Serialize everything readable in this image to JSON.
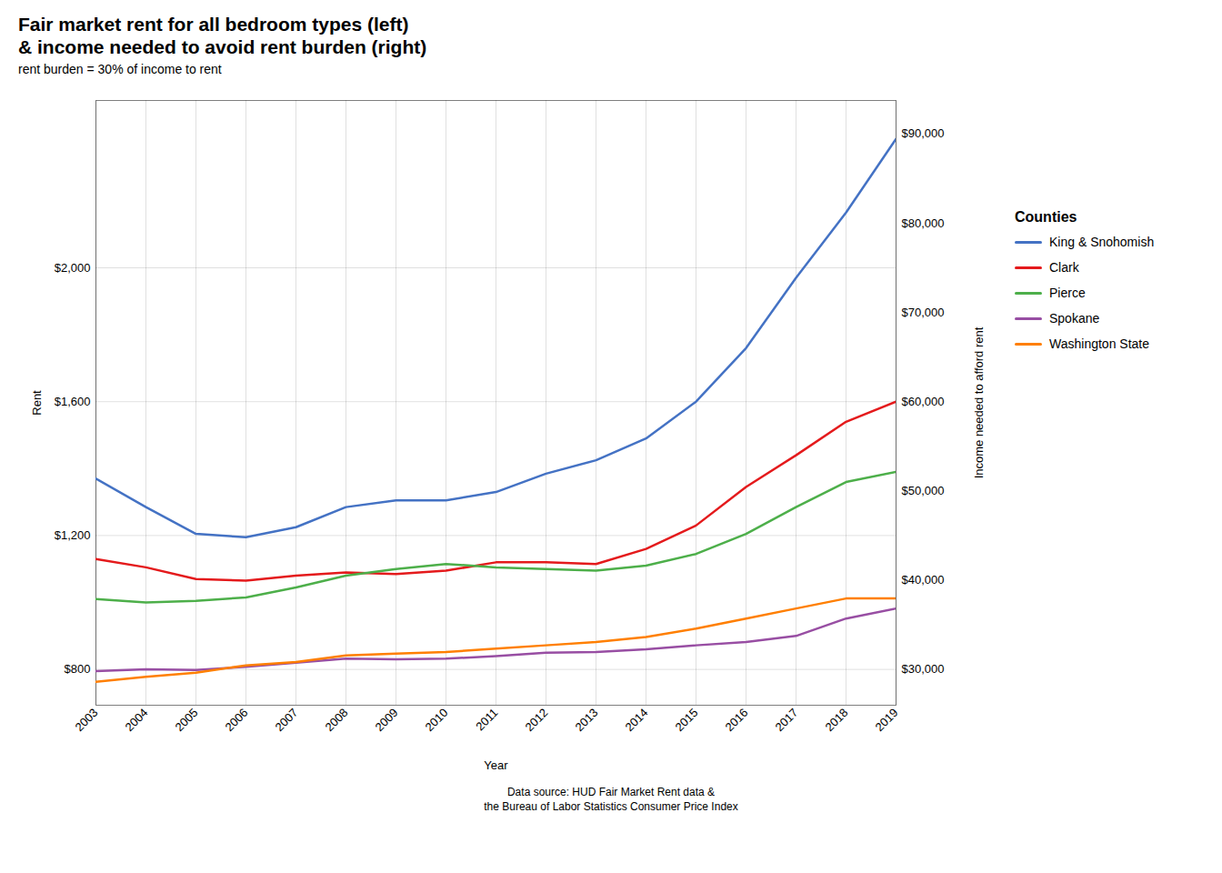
{
  "chart_data": {
    "type": "line",
    "title": "Fair market rent for all bedroom types (left)\n& income needed to avoid rent burden (right)",
    "subtitle": "rent burden = 30% of income to rent",
    "xlabel": "Year",
    "ylabel": "Rent",
    "y2label": "Income needed to afford rent",
    "caption": "Data source: HUD Fair Market Rent data &\nthe Bureau of Labor Statistics Consumer Price Index",
    "legend_title": "Counties",
    "legend": "right",
    "grid": true,
    "x": [
      2003,
      2004,
      2005,
      2006,
      2007,
      2008,
      2009,
      2010,
      2011,
      2012,
      2013,
      2014,
      2015,
      2016,
      2017,
      2018,
      2019
    ],
    "xlim": [
      2003,
      2019
    ],
    "xticks": [
      2003,
      2004,
      2005,
      2006,
      2007,
      2008,
      2009,
      2010,
      2011,
      2012,
      2013,
      2014,
      2015,
      2016,
      2017,
      2018,
      2019
    ],
    "ylim": [
      693,
      2500
    ],
    "yticks": [
      {
        "value": 800,
        "label": "$800"
      },
      {
        "value": 1200,
        "label": "$1,200"
      },
      {
        "value": 1600,
        "label": "$1,600"
      },
      {
        "value": 2000,
        "label": "$2,000"
      }
    ],
    "y2lim": [
      26000,
      93750
    ],
    "y2ticks": [
      {
        "value": 30000,
        "label": "$30,000"
      },
      {
        "value": 40000,
        "label": "$40,000"
      },
      {
        "value": 50000,
        "label": "$50,000"
      },
      {
        "value": 60000,
        "label": "$60,000"
      },
      {
        "value": 70000,
        "label": "$70,000"
      },
      {
        "value": 80000,
        "label": "$80,000"
      },
      {
        "value": 90000,
        "label": "$90,000"
      }
    ],
    "series": [
      {
        "name": "King & Snohomish",
        "color": "#4472c4",
        "values": [
          1370,
          1285,
          1205,
          1195,
          1225,
          1285,
          1305,
          1305,
          1330,
          1385,
          1425,
          1490,
          1600,
          1760,
          1970,
          2165,
          2385
        ]
      },
      {
        "name": "Clark",
        "color": "#e41a1c",
        "values": [
          1130,
          1105,
          1070,
          1065,
          1080,
          1090,
          1085,
          1095,
          1120,
          1120,
          1115,
          1160,
          1230,
          1345,
          1440,
          1540,
          1600
        ]
      },
      {
        "name": "Pierce",
        "color": "#4daf4a",
        "values": [
          1010,
          1000,
          1005,
          1015,
          1045,
          1080,
          1100,
          1115,
          1105,
          1100,
          1095,
          1110,
          1145,
          1205,
          1285,
          1360,
          1390
        ]
      },
      {
        "name": "Spokane",
        "color": "#984ea3",
        "values": [
          795,
          800,
          798,
          808,
          820,
          832,
          830,
          832,
          840,
          850,
          852,
          860,
          872,
          882,
          900,
          952,
          982
        ]
      },
      {
        "name": "Washington State",
        "color": "#ff7f00",
        "values": [
          763,
          778,
          790,
          812,
          822,
          842,
          847,
          852,
          862,
          872,
          882,
          897,
          922,
          952,
          982,
          1012,
          1012
        ]
      }
    ]
  }
}
